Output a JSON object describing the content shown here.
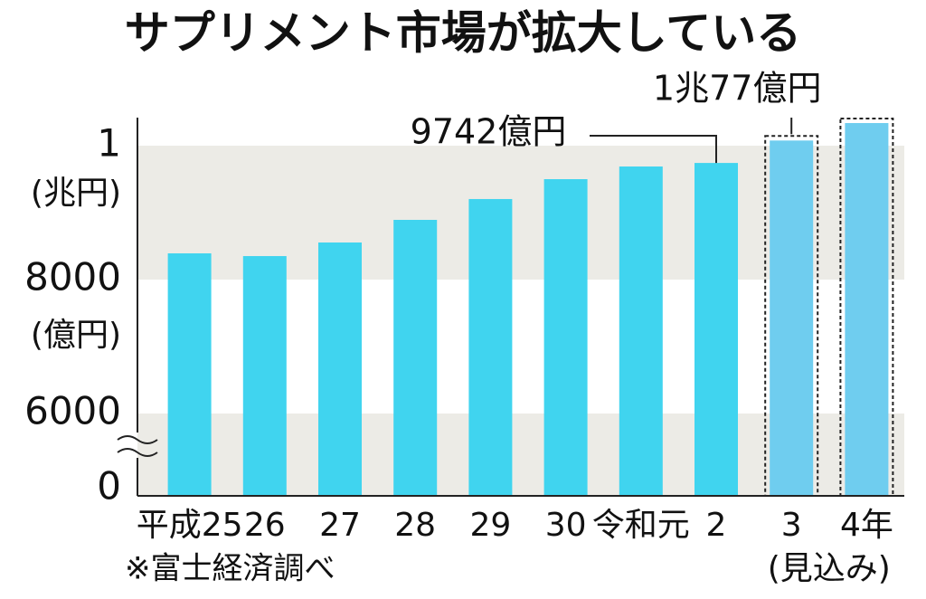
{
  "chart_data": {
    "type": "bar",
    "title": "サプリメント市場が拡大している",
    "categories": [
      "平成25",
      "26",
      "27",
      "28",
      "29",
      "30",
      "令和元",
      "2",
      "3",
      "4年"
    ],
    "values": [
      8392,
      8351,
      8554,
      8892,
      9203,
      9500,
      9689,
      9742,
      10077,
      10338
    ],
    "value_labels": [
      null,
      null,
      null,
      null,
      null,
      null,
      null,
      "9742億円",
      "1兆77億円",
      null
    ],
    "estimated": [
      false,
      false,
      false,
      false,
      false,
      false,
      false,
      false,
      true,
      true
    ],
    "estimate_label": "(見込み)",
    "color": "#40d4ef",
    "estimate_color": "#6fcdef",
    "ylim": [
      0,
      10400
    ],
    "yticks": [
      0,
      6000,
      8000,
      {
        "value": 10000,
        "label": "1"
      }
    ],
    "axis_break": true,
    "axis_unit_labels": [
      "(兆円)",
      "(億円)"
    ],
    "source": "※富士経済調べ",
    "grid": true
  }
}
